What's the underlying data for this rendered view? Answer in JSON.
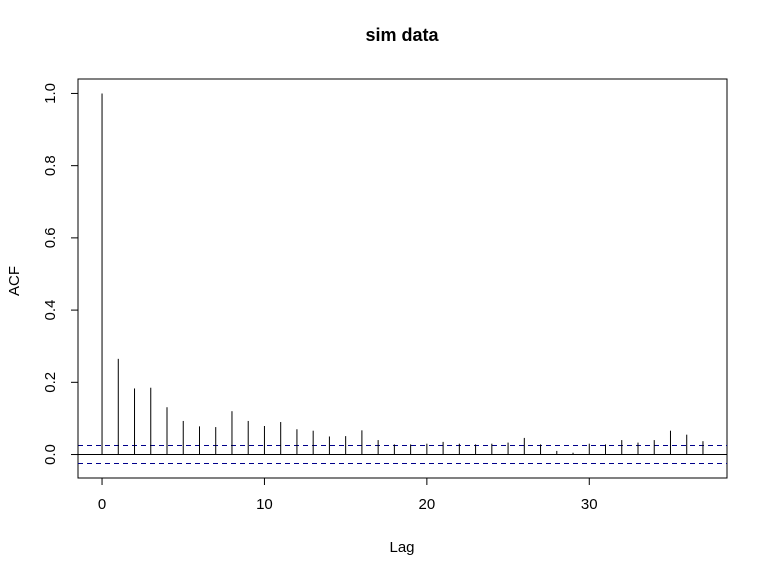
{
  "chart_data": {
    "type": "bar",
    "title": "sim data",
    "xlabel": "Lag",
    "ylabel": "ACF",
    "xlim": [
      -1.48,
      38.48
    ],
    "ylim": [
      -0.065,
      1.04
    ],
    "x_ticks": [
      0,
      10,
      20,
      30
    ],
    "x_tick_labels": [
      "0",
      "10",
      "20",
      "30"
    ],
    "y_ticks": [
      0.0,
      0.2,
      0.4,
      0.6,
      0.8,
      1.0
    ],
    "y_tick_labels": [
      "0.0",
      "0.2",
      "0.4",
      "0.6",
      "0.8",
      "1.0"
    ],
    "grid": false,
    "lags": [
      0,
      1,
      2,
      3,
      4,
      5,
      6,
      7,
      8,
      9,
      10,
      11,
      12,
      13,
      14,
      15,
      16,
      17,
      18,
      19,
      20,
      21,
      22,
      23,
      24,
      25,
      26,
      27,
      28,
      29,
      30,
      31,
      32,
      33,
      34,
      35,
      36,
      37
    ],
    "acf": [
      1.0,
      0.265,
      0.183,
      0.185,
      0.131,
      0.093,
      0.078,
      0.076,
      0.12,
      0.093,
      0.079,
      0.09,
      0.07,
      0.066,
      0.05,
      0.051,
      0.067,
      0.04,
      0.028,
      0.028,
      0.03,
      0.035,
      0.03,
      0.028,
      0.03,
      0.033,
      0.046,
      0.028,
      0.01,
      0.005,
      0.03,
      0.028,
      0.04,
      0.033,
      0.04,
      0.066,
      0.055,
      0.037
    ],
    "confidence_bounds": [
      0.025,
      -0.025
    ],
    "colors": {
      "bars": "#000000",
      "bounds": "#00008B",
      "axes": "#000000"
    }
  }
}
